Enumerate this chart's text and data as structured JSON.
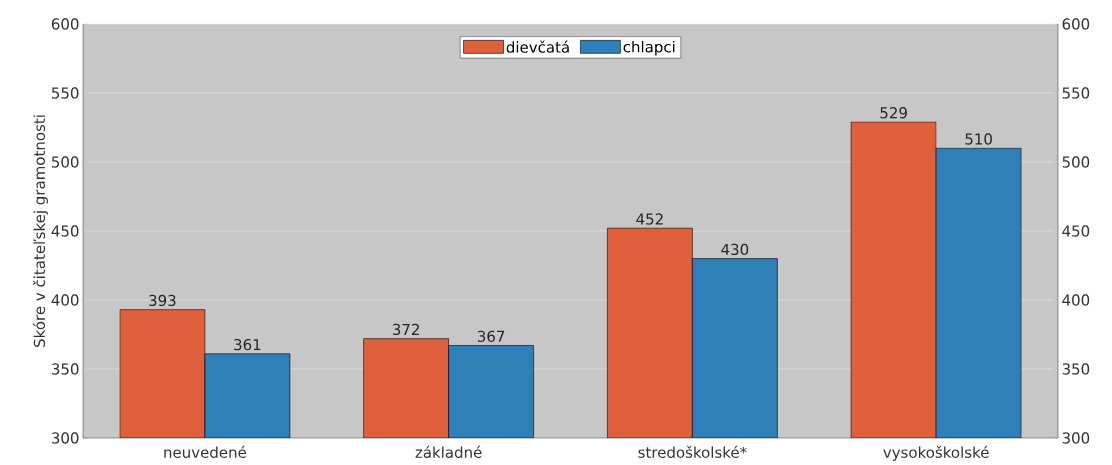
{
  "chart_data": {
    "type": "bar",
    "ylabel": "Skóre v čitateľskej gramotnosti",
    "categories": [
      "neuvedené",
      "základné",
      "stredoškolské*",
      "vysokoškolské"
    ],
    "series": [
      {
        "name": "dievčatá",
        "color": "#e0603c",
        "values": [
          393,
          372,
          452,
          529
        ]
      },
      {
        "name": "chlapci",
        "color": "#2f7fb8",
        "values": [
          361,
          367,
          430,
          510
        ]
      }
    ],
    "ylim": [
      300,
      600
    ],
    "yticks": [
      300,
      350,
      400,
      450,
      500,
      550,
      600
    ],
    "y2lim": [
      300,
      600
    ],
    "y2ticks": [
      300,
      350,
      400,
      450,
      500,
      550,
      600
    ],
    "grid": "y",
    "legend": "top",
    "data_labels": true
  }
}
